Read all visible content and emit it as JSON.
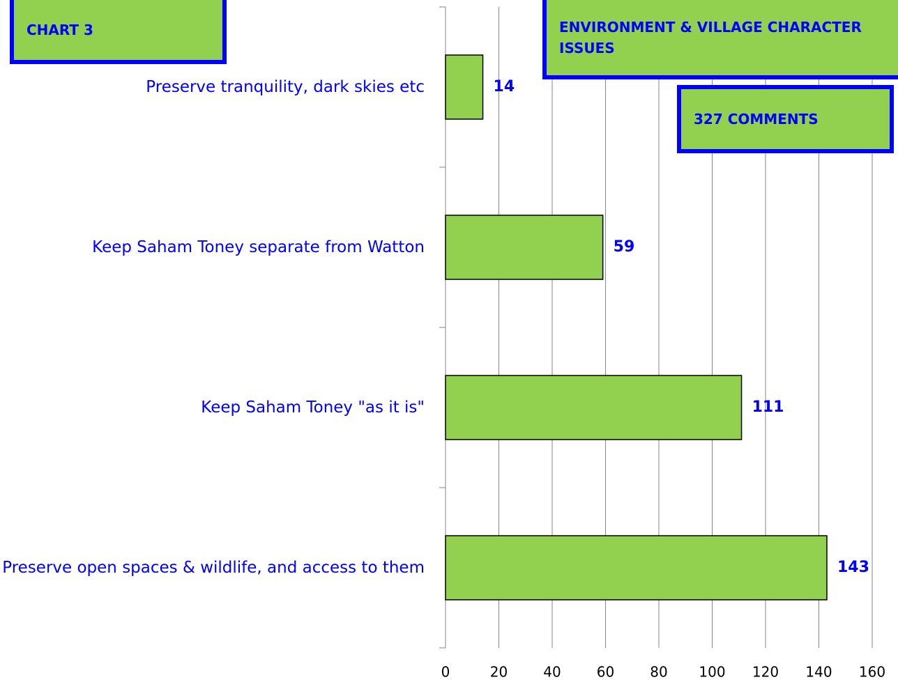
{
  "chart_data": {
    "type": "bar",
    "orientation": "horizontal",
    "title": "ENVIRONMENT & VILLAGE CHARACTER ISSUES",
    "subtitle": "327 COMMENTS",
    "annotations": [
      "CHART 3"
    ],
    "categories": [
      "Preserve tranquility, dark skies etc",
      "Keep Saham Toney separate from Watton",
      "Keep Saham Toney \"as it is\"",
      "Preserve open spaces & wildlife, and access to them"
    ],
    "values": [
      14,
      59,
      111,
      143
    ],
    "color": "#92d050",
    "xlim": [
      0,
      160
    ],
    "xticks": [
      0,
      20,
      40,
      60,
      80,
      100,
      120,
      140,
      160
    ],
    "grid": true
  }
}
